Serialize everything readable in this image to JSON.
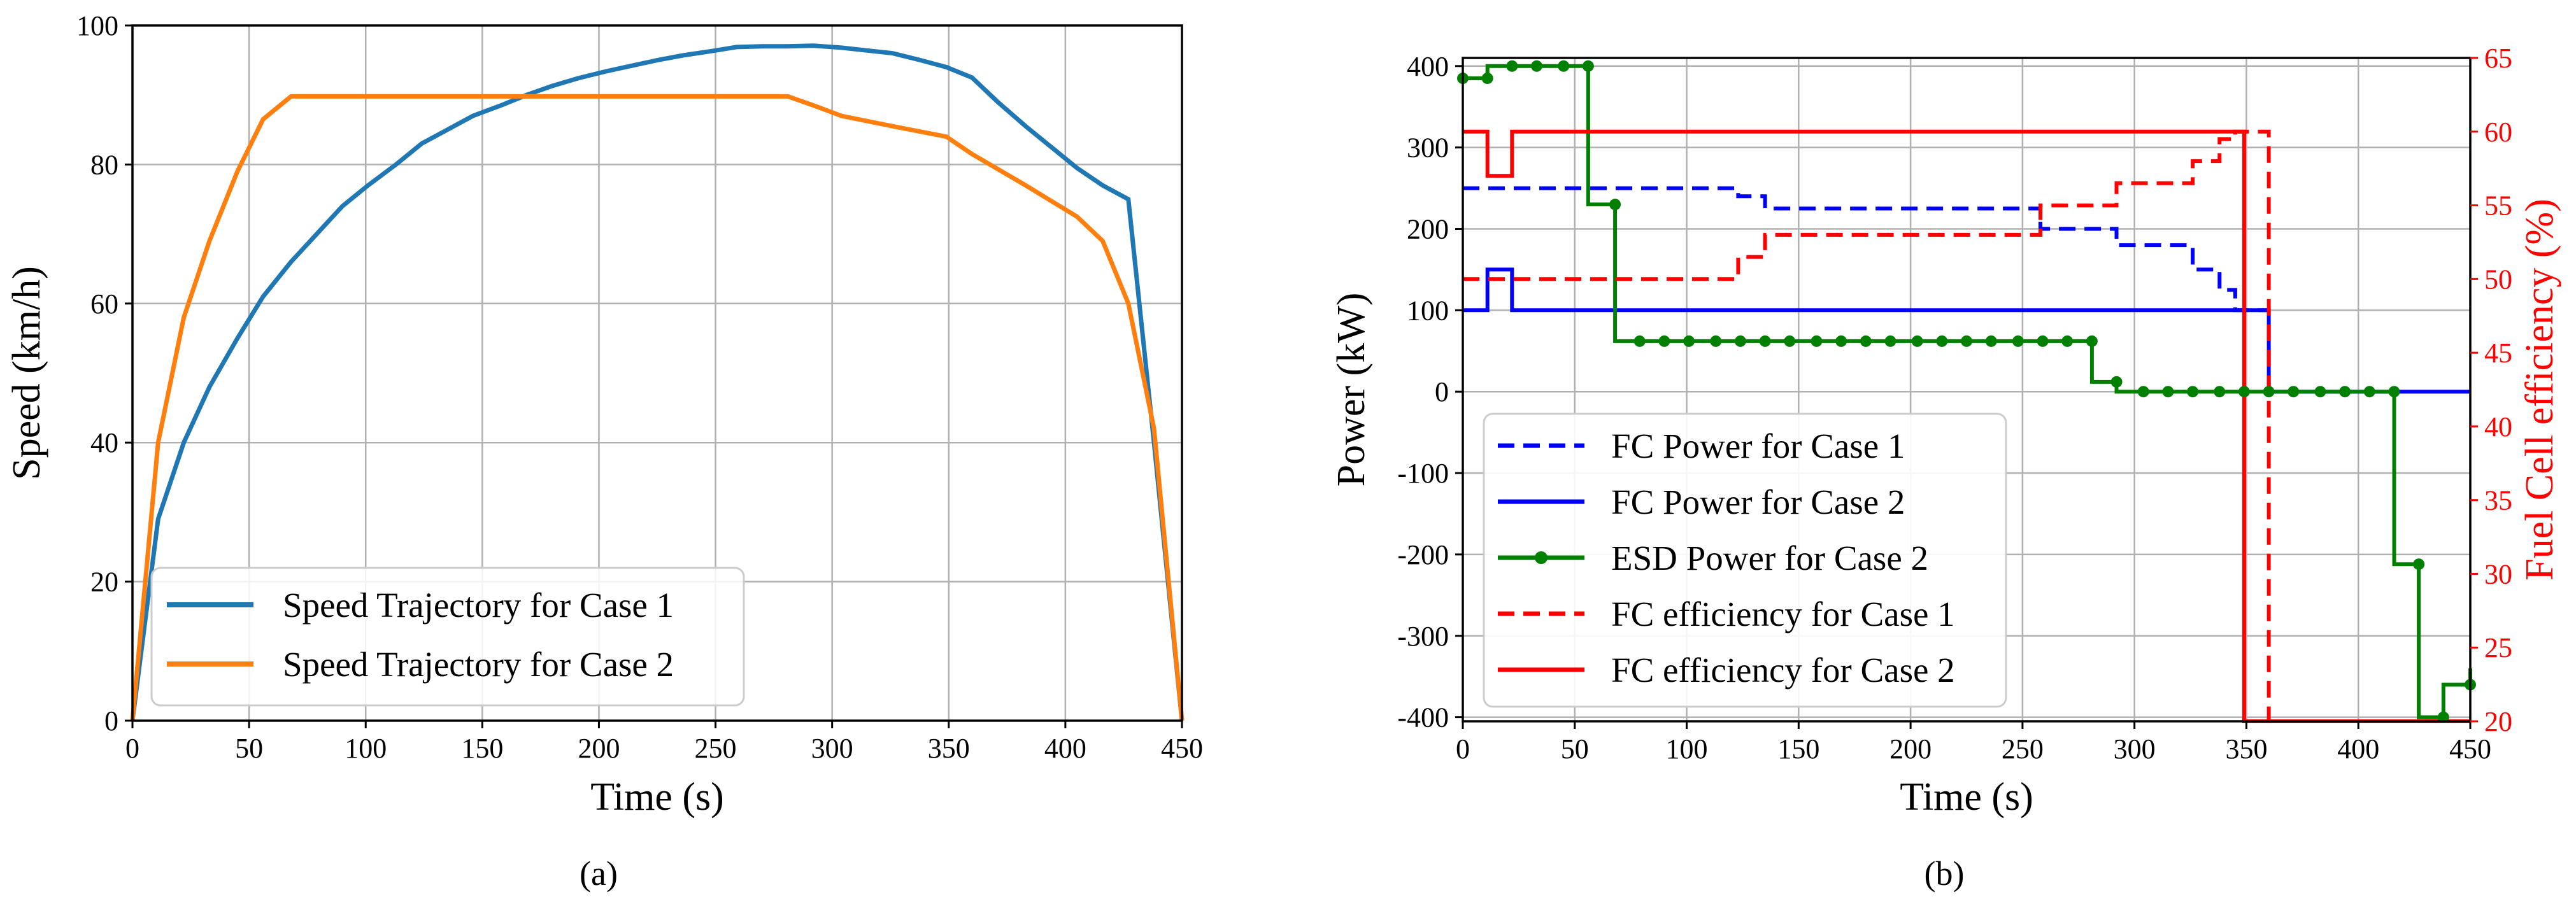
{
  "colors": {
    "case1_speed": "#1f77b4",
    "case2_speed": "#ff7f0e",
    "fc_power": "#0000ff",
    "esd_power": "#008000",
    "efficiency": "#ff0000",
    "grid": "#b0b0b0"
  },
  "chart_data": [
    {
      "type": "line",
      "panel_label": "(a)",
      "title": "",
      "xlabel": "Time (s)",
      "ylabel": "Speed (km/h)",
      "xlim": [
        0,
        450
      ],
      "ylim": [
        0,
        100
      ],
      "xticks": [
        0,
        50,
        100,
        150,
        200,
        250,
        300,
        350,
        400,
        450
      ],
      "yticks": [
        0,
        20,
        40,
        60,
        80,
        100
      ],
      "grid": true,
      "legend_position": "lower-left",
      "series": [
        {
          "name": "Speed Trajectory for Case 1",
          "color": "#1f77b4",
          "style": "solid",
          "points": [
            [
              0,
              0
            ],
            [
              11,
              29
            ],
            [
              22,
              40
            ],
            [
              33,
              48
            ],
            [
              45,
              55
            ],
            [
              56,
              61
            ],
            [
              68,
              66
            ],
            [
              79,
              70
            ],
            [
              90,
              74
            ],
            [
              101,
              77
            ],
            [
              113,
              80
            ],
            [
              124,
              83
            ],
            [
              135,
              85
            ],
            [
              146,
              87
            ],
            [
              158,
              88.5
            ],
            [
              169,
              90
            ],
            [
              180,
              91.3
            ],
            [
              191,
              92.4
            ],
            [
              203,
              93.4
            ],
            [
              214,
              94.2
            ],
            [
              225,
              95
            ],
            [
              236,
              95.7
            ],
            [
              248,
              96.3
            ],
            [
              259,
              96.9
            ],
            [
              270,
              97
            ],
            [
              281,
              97
            ],
            [
              292,
              97.1
            ],
            [
              304,
              96.8
            ],
            [
              315,
              96.4
            ],
            [
              326,
              96
            ],
            [
              338,
              95
            ],
            [
              349,
              94
            ],
            [
              360,
              92.5
            ],
            [
              371,
              89
            ],
            [
              383,
              85.5
            ],
            [
              394,
              82.5
            ],
            [
              405,
              79.5
            ],
            [
              416,
              77
            ],
            [
              427,
              75
            ],
            [
              438,
              40
            ],
            [
              450,
              0
            ]
          ]
        },
        {
          "name": "Speed Trajectory for Case 2",
          "color": "#ff7f0e",
          "style": "solid",
          "points": [
            [
              0,
              0
            ],
            [
              11,
              40
            ],
            [
              22,
              58
            ],
            [
              33,
              69
            ],
            [
              45,
              79
            ],
            [
              56,
              86.5
            ],
            [
              68,
              89.8
            ],
            [
              100,
              89.8
            ],
            [
              150,
              89.8
            ],
            [
              200,
              89.8
            ],
            [
              250,
              89.8
            ],
            [
              281,
              89.8
            ],
            [
              292,
              88.5
            ],
            [
              304,
              87
            ],
            [
              326,
              85.5
            ],
            [
              349,
              84
            ],
            [
              360,
              81.5
            ],
            [
              383,
              77
            ],
            [
              405,
              72.5
            ],
            [
              416,
              69
            ],
            [
              427,
              60
            ],
            [
              438,
              42
            ],
            [
              450,
              0
            ]
          ]
        }
      ]
    },
    {
      "type": "line",
      "panel_label": "(b)",
      "title": "",
      "xlabel": "Time (s)",
      "ylabel": "Power (kW)",
      "ylabel_right": "Fuel Cell efficiency (%)",
      "xlim": [
        0,
        450
      ],
      "ylim": [
        -405,
        410
      ],
      "ylim_right": [
        20,
        65
      ],
      "xticks": [
        0,
        50,
        100,
        150,
        200,
        250,
        300,
        350,
        400,
        450
      ],
      "yticks": [
        -400,
        -300,
        -200,
        -100,
        0,
        100,
        200,
        300,
        400
      ],
      "yticks_right": [
        20,
        25,
        30,
        35,
        40,
        45,
        50,
        55,
        60,
        65
      ],
      "grid": true,
      "legend_position": "lower-left",
      "series": [
        {
          "name": "FC Power for Case 1",
          "axis": "left",
          "color": "#0000ff",
          "style": "dashed",
          "step": true,
          "points": [
            [
              0,
              250
            ],
            [
              123,
              250
            ],
            [
              123,
              240
            ],
            [
              135,
              240
            ],
            [
              135,
              225
            ],
            [
              258,
              225
            ],
            [
              258,
              200
            ],
            [
              292,
              200
            ],
            [
              292,
              180
            ],
            [
              326,
              180
            ],
            [
              326,
              150
            ],
            [
              338,
              150
            ],
            [
              338,
              125
            ],
            [
              345,
              125
            ],
            [
              345,
              100
            ],
            [
              360,
              100
            ],
            [
              360,
              0
            ]
          ]
        },
        {
          "name": "FC Power for Case 2",
          "axis": "left",
          "color": "#0000ff",
          "style": "solid",
          "step": true,
          "points": [
            [
              0,
              100
            ],
            [
              11,
              100
            ],
            [
              11,
              150
            ],
            [
              22,
              150
            ],
            [
              22,
              100
            ],
            [
              360,
              100
            ],
            [
              360,
              0
            ],
            [
              450,
              0
            ]
          ]
        },
        {
          "name": "ESD Power for Case 2",
          "axis": "left",
          "color": "#008000",
          "style": "solid",
          "marker": "circle",
          "step": true,
          "points": [
            [
              0,
              385
            ],
            [
              11,
              385
            ],
            [
              11,
              400
            ],
            [
              56,
              400
            ],
            [
              56,
              230
            ],
            [
              68,
              230
            ],
            [
              68,
              62
            ],
            [
              281,
              62
            ],
            [
              281,
              12
            ],
            [
              292,
              12
            ],
            [
              292,
              0
            ],
            [
              416,
              0
            ],
            [
              416,
              -212
            ],
            [
              427,
              -212
            ],
            [
              427,
              -400
            ],
            [
              438,
              -400
            ],
            [
              438,
              -360
            ],
            [
              450,
              -360
            ],
            [
              450,
              -340
            ]
          ],
          "marker_points": [
            [
              0,
              385
            ],
            [
              11,
              385
            ],
            [
              22,
              400
            ],
            [
              33,
              400
            ],
            [
              45,
              400
            ],
            [
              56,
              400
            ],
            [
              68,
              230
            ],
            [
              79,
              62
            ],
            [
              90,
              62
            ],
            [
              101,
              62
            ],
            [
              113,
              62
            ],
            [
              124,
              62
            ],
            [
              135,
              62
            ],
            [
              146,
              62
            ],
            [
              158,
              62
            ],
            [
              169,
              62
            ],
            [
              180,
              62
            ],
            [
              191,
              62
            ],
            [
              203,
              62
            ],
            [
              214,
              62
            ],
            [
              225,
              62
            ],
            [
              236,
              62
            ],
            [
              248,
              62
            ],
            [
              259,
              62
            ],
            [
              270,
              62
            ],
            [
              281,
              62
            ],
            [
              292,
              12
            ],
            [
              304,
              0
            ],
            [
              315,
              0
            ],
            [
              326,
              0
            ],
            [
              338,
              0
            ],
            [
              349,
              0
            ],
            [
              360,
              0
            ],
            [
              371,
              0
            ],
            [
              383,
              0
            ],
            [
              394,
              0
            ],
            [
              405,
              0
            ],
            [
              416,
              0
            ],
            [
              427,
              -212
            ],
            [
              438,
              -400
            ],
            [
              450,
              -360
            ]
          ]
        },
        {
          "name": "FC efficiency for Case 1",
          "axis": "right",
          "color": "#ff0000",
          "style": "dashed",
          "step": true,
          "points": [
            [
              0,
              50
            ],
            [
              123,
              50
            ],
            [
              123,
              51.5
            ],
            [
              135,
              51.5
            ],
            [
              135,
              53
            ],
            [
              258,
              53
            ],
            [
              258,
              55
            ],
            [
              292,
              55
            ],
            [
              292,
              56.5
            ],
            [
              326,
              56.5
            ],
            [
              326,
              58
            ],
            [
              338,
              58
            ],
            [
              338,
              59.5
            ],
            [
              345,
              59.5
            ],
            [
              345,
              60
            ],
            [
              360,
              60
            ],
            [
              360,
              20
            ],
            [
              450,
              20
            ]
          ]
        },
        {
          "name": "FC efficiency for Case 2",
          "axis": "right",
          "color": "#ff0000",
          "style": "solid",
          "step": true,
          "points": [
            [
              0,
              60
            ],
            [
              11,
              60
            ],
            [
              11,
              57
            ],
            [
              22,
              57
            ],
            [
              22,
              60
            ],
            [
              349,
              60
            ],
            [
              349,
              20
            ],
            [
              450,
              20
            ]
          ]
        }
      ]
    }
  ]
}
